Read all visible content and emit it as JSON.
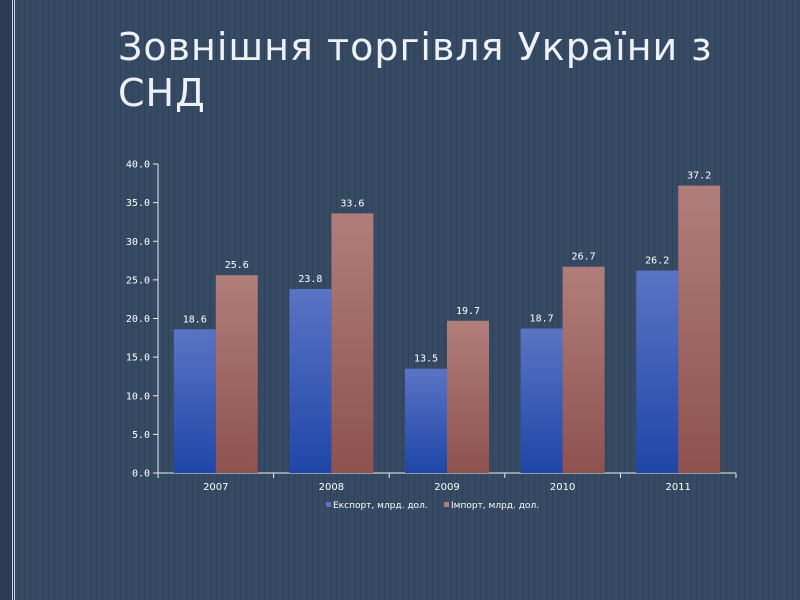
{
  "slide": {
    "title": "Зовнішня торгівля України з СНД"
  },
  "colors": {
    "export_top": "#5a74c4",
    "export_bottom": "#1f46a8",
    "import_top": "#b07e7a",
    "import_bottom": "#8e524f",
    "axis": "#e8edf4",
    "background": "#364a63"
  },
  "chart_data": {
    "type": "bar",
    "categories": [
      "2007",
      "2008",
      "2009",
      "2010",
      "2011"
    ],
    "series": [
      {
        "name": "Експорт, млрд. дол.",
        "values": [
          18.6,
          23.8,
          13.5,
          18.7,
          26.2
        ]
      },
      {
        "name": "Імпорт, млрд. дол.",
        "values": [
          25.6,
          33.6,
          19.7,
          26.7,
          37.2
        ]
      }
    ],
    "y_ticks": [
      "0.0",
      "5.0",
      "10.0",
      "15.0",
      "20.0",
      "25.0",
      "30.0",
      "35.0",
      "40.0"
    ],
    "ylim": [
      0,
      40
    ],
    "data_labels": true,
    "legend_position": "bottom",
    "grid": false
  }
}
